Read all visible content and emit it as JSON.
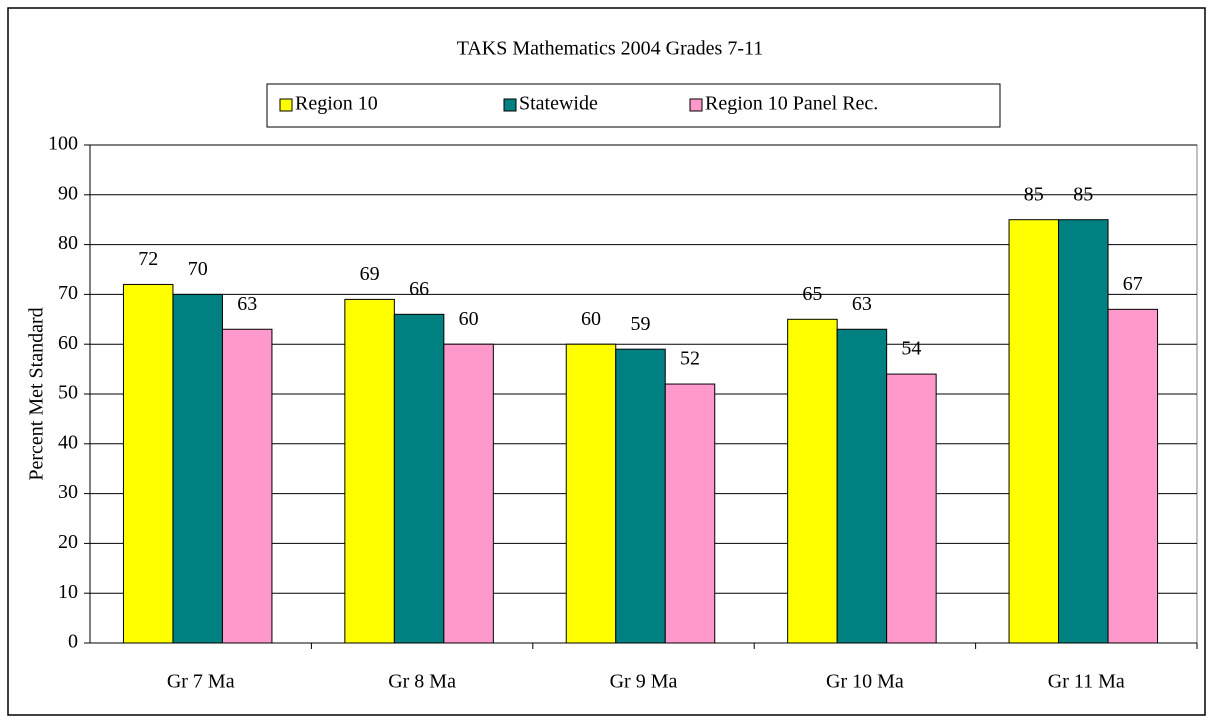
{
  "chart_data": {
    "type": "bar",
    "title": "TAKS Mathematics 2004 Grades 7-11",
    "y_label": "Percent Met Standard",
    "categories": [
      "Gr 7 Ma",
      "Gr 8 Ma",
      "Gr 9 Ma",
      "Gr 10 Ma",
      "Gr 11 Ma"
    ],
    "series": [
      {
        "name": "Region 10",
        "color": "#ffff00",
        "values": [
          72,
          69,
          60,
          65,
          85
        ]
      },
      {
        "name": "Statewide",
        "color": "#008080",
        "values": [
          70,
          66,
          59,
          63,
          85
        ]
      },
      {
        "name": "Region 10 Panel Rec.",
        "color": "#ff99cc",
        "values": [
          63,
          60,
          52,
          54,
          67
        ]
      }
    ],
    "ylim": [
      0,
      100
    ],
    "yticks": [
      0,
      10,
      20,
      30,
      40,
      50,
      60,
      70,
      80,
      90,
      100
    ],
    "grid": true,
    "legend": "top"
  }
}
